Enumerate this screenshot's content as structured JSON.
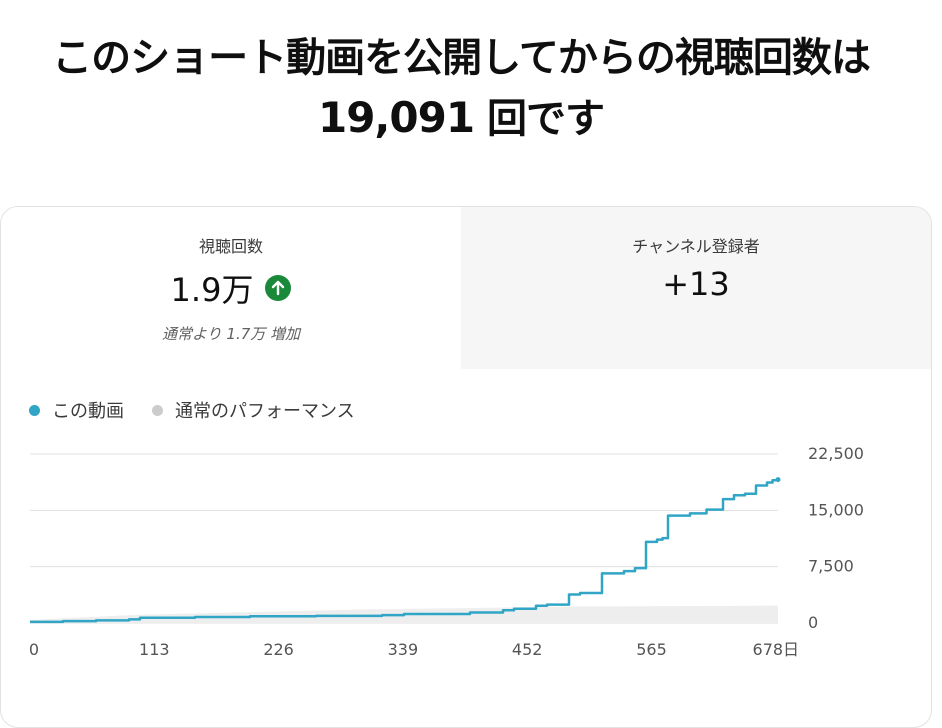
{
  "headline": {
    "line1": "このショート動画を公開してからの視聴回数は",
    "count": "19,091",
    "suffix": " 回です"
  },
  "metrics": {
    "views": {
      "label": "視聴回数",
      "value": "1.9万",
      "trend_icon": "arrow-up-icon",
      "note": "通常より 1.7万 増加"
    },
    "subscribers": {
      "label": "チャンネル登録者",
      "value": "+13"
    }
  },
  "legend": [
    {
      "label": "この動画",
      "color": "#30a5c6"
    },
    {
      "label": "通常のパフォーマンス",
      "color": "#cccccc"
    }
  ],
  "colors": {
    "series": "#30a5c6",
    "typical_band": "#eeeeee",
    "up_badge": "#1a8a3a",
    "grid": "#e0e0e0"
  },
  "chart_data": {
    "type": "line",
    "ylim": [
      0,
      22500
    ],
    "yticks": [
      "0",
      "7,500",
      "15,000",
      "22,500"
    ],
    "xticks": [
      "0",
      "113",
      "226",
      "339",
      "452",
      "565",
      "678日"
    ],
    "xtick_values": [
      0,
      113,
      226,
      339,
      452,
      565,
      678
    ],
    "xlim": [
      0,
      680
    ],
    "grid": true,
    "series": [
      {
        "name": "この動画",
        "x": [
          0,
          30,
          60,
          90,
          100,
          150,
          200,
          260,
          320,
          340,
          400,
          430,
          440,
          460,
          470,
          490,
          500,
          520,
          540,
          550,
          560,
          570,
          575,
          580,
          600,
          615,
          630,
          640,
          650,
          660,
          670,
          675,
          680
        ],
        "y": [
          150,
          250,
          350,
          480,
          700,
          800,
          900,
          950,
          1050,
          1200,
          1400,
          1700,
          1900,
          2300,
          2450,
          3800,
          4000,
          6600,
          6900,
          7300,
          10800,
          11100,
          11300,
          14300,
          14600,
          15100,
          16500,
          17000,
          17200,
          18300,
          18700,
          19000,
          19091
        ]
      },
      {
        "name": "通常のパフォーマンス",
        "band_low": 0,
        "band_high": [
          400,
          1100,
          1800,
          2200,
          2300
        ],
        "band_x": [
          0,
          100,
          300,
          500,
          680
        ]
      }
    ]
  }
}
